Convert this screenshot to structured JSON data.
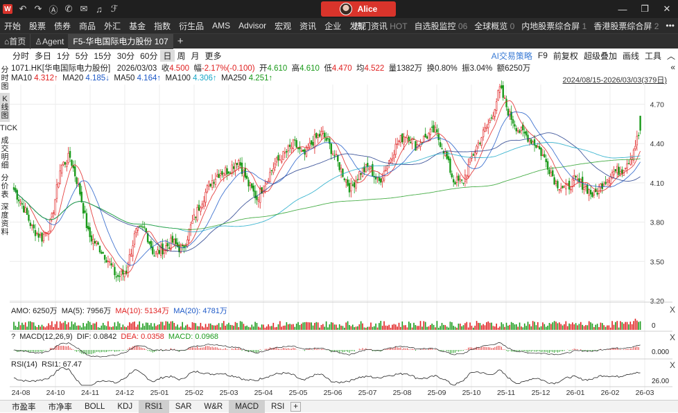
{
  "titlebar": {
    "logo_letter": "W",
    "icons": [
      "back-icon",
      "forward-icon",
      "a-icon",
      "chat-icon",
      "mail-icon",
      "bell-icon",
      "f-icon"
    ],
    "user": "Alice"
  },
  "menu": {
    "items": [
      "开始",
      "股票",
      "债券",
      "商品",
      "外汇",
      "基金",
      "指数",
      "衍生品",
      "AMS",
      "Advisor",
      "宏观",
      "资讯",
      "企业",
      "发现"
    ],
    "right_items": [
      {
        "label": "热门资讯",
        "badge": "HOT"
      },
      {
        "label": "自选股监控",
        "badge": "06"
      },
      {
        "label": "全球概览",
        "badge": "0"
      },
      {
        "label": "内地股票综合屏",
        "badge": "1"
      },
      {
        "label": "香港股票综合屏",
        "badge": "2"
      }
    ],
    "more": "•••"
  },
  "tabs": {
    "home": "⌂首页",
    "agent": "Agent",
    "active": "F5-华电国际电力股份 107",
    "add": "+"
  },
  "toolbar": {
    "periods": [
      "分时",
      "多日",
      "1分",
      "5分",
      "15分",
      "30分",
      "60分",
      "日",
      "周",
      "月",
      "更多"
    ],
    "selected_period": "日",
    "right": [
      "AI交易策略",
      "F9",
      "前复权",
      "超级叠加",
      "画线",
      "工具"
    ],
    "up_arrow": "︿",
    "double_left": "«"
  },
  "sidebar": [
    "分时图",
    "K线图",
    "TICK",
    "成交明细",
    "分价表",
    "深度资料"
  ],
  "quote": {
    "code": "1071.HK[华电国际电力股份]",
    "date": "2026/03/03",
    "close_label": "收",
    "close": "4.500",
    "chg_label": "幅",
    "chg": "-2.17%(-0.100)",
    "open_label": "开",
    "open": "4.610",
    "high_label": "高",
    "high": "4.610",
    "low_label": "低",
    "low": "4.470",
    "avg_label": "均",
    "avg": "4.522",
    "vol_label": "量",
    "vol": "1382万",
    "turn_label": "换",
    "turn": "0.80%",
    "amp_label": "振",
    "amp": "3.04%",
    "amt_label": "额",
    "amt": "6250万"
  },
  "ma": {
    "ma10_label": "MA10",
    "ma10": "4.312↑",
    "ma20_label": "MA20",
    "ma20": "4.185↓",
    "ma50_label": "MA50",
    "ma50": "4.164↑",
    "ma100_label": "MA100",
    "ma100": "4.306↑",
    "ma250_label": "MA250",
    "ma250": "4.251↑",
    "range": "2024/08/15-2026/03/03(379日)"
  },
  "colors": {
    "up": "#e02020",
    "down": "#1a9a1a",
    "ma10": "#e02020",
    "ma20": "#1e5ac8",
    "ma50": "#1e3a8a",
    "ma100": "#1aa8c8",
    "ma250": "#28a028",
    "text": "#222222"
  },
  "chart_data": {
    "type": "candlestick",
    "y_ticks": [
      "4.70",
      "4.40",
      "4.10",
      "3.80",
      "3.50",
      "3.20"
    ],
    "x_ticks": [
      "24-08",
      "24-10",
      "24-11",
      "24-12",
      "25-01",
      "25-02",
      "25-03",
      "25-04",
      "25-05",
      "25-06",
      "25-07",
      "25-08",
      "25-09",
      "25-10",
      "25-11",
      "25-12",
      "26-01",
      "26-02",
      "26-03"
    ],
    "ylim": [
      3.2,
      4.85
    ],
    "close_series_approx": [
      4.05,
      3.92,
      3.75,
      3.68,
      3.8,
      4.22,
      4.3,
      4.05,
      3.7,
      3.62,
      3.52,
      3.38,
      3.42,
      3.72,
      3.75,
      3.55,
      3.6,
      3.65,
      3.58,
      3.78,
      3.95,
      4.1,
      4.18,
      4.2,
      4.28,
      4.1,
      3.98,
      4.12,
      4.25,
      4.32,
      4.4,
      4.3,
      4.42,
      4.48,
      4.35,
      4.2,
      4.05,
      4.18,
      4.22,
      4.1,
      4.25,
      4.4,
      4.48,
      4.38,
      4.45,
      4.5,
      4.35,
      4.12,
      4.1,
      4.3,
      4.45,
      4.58,
      4.82,
      4.62,
      4.5,
      4.45,
      4.38,
      4.25,
      4.1,
      4.05,
      4.12,
      4.08,
      4.0,
      4.1,
      4.18,
      4.2,
      4.3,
      4.5
    ],
    "last": {
      "open": 4.61,
      "high": 4.61,
      "low": 4.47,
      "close": 4.5
    }
  },
  "amo": {
    "label": "AMO: 6250万",
    "ma5": "MA(5): 7956万",
    "ma10": "MA(10): 5134万",
    "ma20": "MA(20): 4781万",
    "axis": "0",
    "close": "X"
  },
  "macd": {
    "q": "?",
    "label": "MACD(12,26,9)",
    "dif": "DIF: 0.0842",
    "dea": "DEA: 0.0358",
    "macd": "MACD: 0.0968",
    "axis": "0.000",
    "close": "X"
  },
  "rsi": {
    "label": "RSI(14)",
    "rsi1": "RSI1: 67.47",
    "axis": "26.00",
    "close": "X"
  },
  "bottom_tabs": [
    "市盈率",
    "市净率",
    "BOLL",
    "KDJ",
    "RSI1",
    "SAR",
    "W&R",
    "MACD",
    "RSI"
  ],
  "bottom_selected": [
    "RSI1",
    "MACD"
  ],
  "bottom_add": "+"
}
